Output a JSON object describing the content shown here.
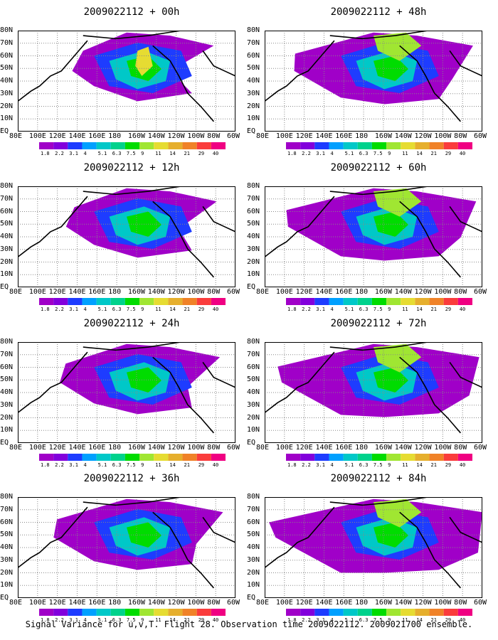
{
  "figure": {
    "caption": "Signal Variance for u,v,T. Flight 28. Observation time 2009022112. 2009021700 ensemble.",
    "lat_labels": [
      "80N",
      "70N",
      "60N",
      "50N",
      "40N",
      "30N",
      "20N",
      "10N",
      "EQ"
    ],
    "lon_labels": [
      "80E",
      "100E",
      "120E",
      "140E",
      "160E",
      "180",
      "160W",
      "140W",
      "120W",
      "100W",
      "80W",
      "60W"
    ],
    "colorbar": {
      "labels": [
        "1.8",
        "2.2",
        "3.1",
        "4",
        "5.1",
        "6.3",
        "7.5",
        "9",
        "11",
        "14",
        "21",
        "29",
        "40"
      ],
      "colors": [
        "#a000c8",
        "#8200dc",
        "#1e3cff",
        "#00a0ff",
        "#00c8c8",
        "#00d28c",
        "#00dc00",
        "#a0e632",
        "#e6dc32",
        "#e6af2d",
        "#f08228",
        "#fa3c3c",
        "#f00082"
      ]
    },
    "panels": [
      {
        "title": "2009022112 + 00h",
        "forecast_hour": 0
      },
      {
        "title": "2009022112 + 12h",
        "forecast_hour": 12
      },
      {
        "title": "2009022112 + 24h",
        "forecast_hour": 24
      },
      {
        "title": "2009022112 + 36h",
        "forecast_hour": 36
      },
      {
        "title": "2009022112 + 48h",
        "forecast_hour": 48
      },
      {
        "title": "2009022112 + 60h",
        "forecast_hour": 60
      },
      {
        "title": "2009022112 + 72h",
        "forecast_hour": 72
      },
      {
        "title": "2009022112 + 84h",
        "forecast_hour": 84
      }
    ]
  }
}
